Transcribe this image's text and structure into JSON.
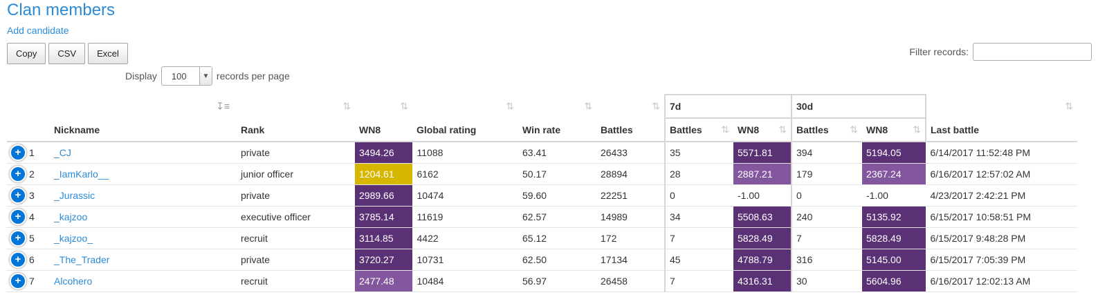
{
  "header": {
    "title": "Clan members",
    "add_candidate": "Add candidate"
  },
  "toolbar": {
    "copy": "Copy",
    "csv": "CSV",
    "excel": "Excel"
  },
  "filter": {
    "label": "Filter records:",
    "value": ""
  },
  "length": {
    "before": "Display",
    "selected": "100",
    "after": "records per page"
  },
  "groups": {
    "g7": "7d",
    "g30": "30d"
  },
  "columns": {
    "nickname": "Nickname",
    "rank": "Rank",
    "wn8": "WN8",
    "global_rating": "Global rating",
    "win_rate": "Win rate",
    "battles": "Battles",
    "b7": "Battles",
    "w7": "WN8",
    "b30": "Battles",
    "w30": "WN8",
    "last_battle": "Last battle"
  },
  "colors": {
    "super_unicum": "#5a3175",
    "unicum": "#83579d",
    "great": "#d7b600"
  },
  "rows": [
    {
      "idx": "1",
      "nickname": "_CJ",
      "rank": "private",
      "wn8": "3494.26",
      "wn8_color": "#5a3175",
      "global": "11088",
      "winrate": "63.41",
      "battles": "26433",
      "b7": "35",
      "w7": "5571.81",
      "w7_color": "#5a3175",
      "b30": "394",
      "w30": "5194.05",
      "w30_color": "#5a3175",
      "last": "6/14/2017 11:52:48 PM"
    },
    {
      "idx": "2",
      "nickname": "_IamKarlo__",
      "rank": "junior officer",
      "wn8": "1204.61",
      "wn8_color": "#d7b600",
      "global": "6162",
      "winrate": "50.17",
      "battles": "28894",
      "b7": "28",
      "w7": "2887.21",
      "w7_color": "#83579d",
      "b30": "179",
      "w30": "2367.24",
      "w30_color": "#83579d",
      "last": "6/16/2017 12:57:02 AM"
    },
    {
      "idx": "3",
      "nickname": "_Jurassic",
      "rank": "private",
      "wn8": "2989.66",
      "wn8_color": "#5a3175",
      "global": "10474",
      "winrate": "59.60",
      "battles": "22251",
      "b7": "0",
      "w7": "-1.00",
      "w7_color": "",
      "b30": "0",
      "w30": "-1.00",
      "w30_color": "",
      "last": "4/23/2017 2:42:21 PM"
    },
    {
      "idx": "4",
      "nickname": "_kajzoo",
      "rank": "executive officer",
      "wn8": "3785.14",
      "wn8_color": "#5a3175",
      "global": "11619",
      "winrate": "62.57",
      "battles": "14989",
      "b7": "34",
      "w7": "5508.63",
      "w7_color": "#5a3175",
      "b30": "240",
      "w30": "5135.92",
      "w30_color": "#5a3175",
      "last": "6/15/2017 10:58:51 PM"
    },
    {
      "idx": "5",
      "nickname": "_kajzoo_",
      "rank": "recruit",
      "wn8": "3114.85",
      "wn8_color": "#5a3175",
      "global": "4422",
      "winrate": "65.12",
      "battles": "172",
      "b7": "7",
      "w7": "5828.49",
      "w7_color": "#5a3175",
      "b30": "7",
      "w30": "5828.49",
      "w30_color": "#5a3175",
      "last": "6/15/2017 9:48:28 PM"
    },
    {
      "idx": "6",
      "nickname": "_The_Trader",
      "rank": "private",
      "wn8": "3720.27",
      "wn8_color": "#5a3175",
      "global": "10731",
      "winrate": "62.50",
      "battles": "17134",
      "b7": "45",
      "w7": "4788.79",
      "w7_color": "#5a3175",
      "b30": "316",
      "w30": "5145.00",
      "w30_color": "#5a3175",
      "last": "6/15/2017 7:05:39 PM"
    },
    {
      "idx": "7",
      "nickname": "Alcohero",
      "rank": "recruit",
      "wn8": "2477.48",
      "wn8_color": "#83579d",
      "global": "10484",
      "winrate": "56.97",
      "battles": "26458",
      "b7": "7",
      "w7": "4316.31",
      "w7_color": "#5a3175",
      "b30": "30",
      "w30": "5604.96",
      "w30_color": "#5a3175",
      "last": "6/16/2017 12:02:13 AM"
    }
  ]
}
